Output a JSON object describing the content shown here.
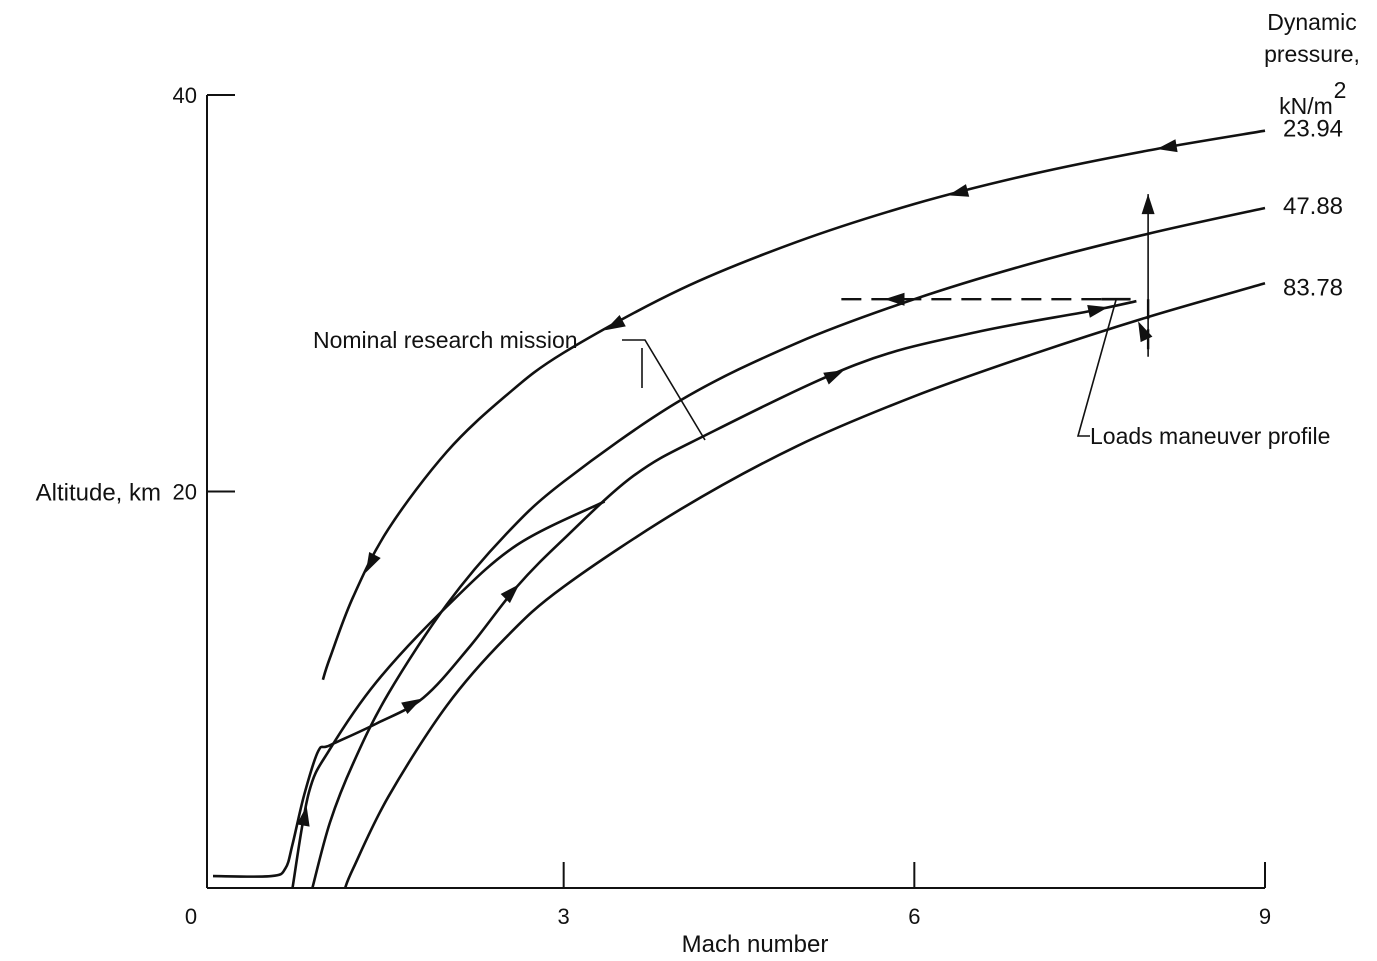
{
  "chart_data": {
    "type": "line",
    "xlabel": "Mach number",
    "ylabel": "Altitude, km",
    "xlim": [
      0,
      9
    ],
    "ylim": [
      0,
      40
    ],
    "x_ticks": [
      "0",
      "3",
      "6",
      "9"
    ],
    "y_ticks": [
      "20",
      "40"
    ],
    "legend_title_lines": [
      "Dynamic",
      "pressure,",
      "kN/m"
    ],
    "legend_title_superscript": "2",
    "series": [
      {
        "name": "23.94",
        "x": [
          0.94,
          1.0,
          1.2,
          1.5,
          2.0,
          2.5,
          3.0,
          4.0,
          5.0,
          6.0,
          7.0,
          8.0,
          9.0
        ],
        "y": [
          10.5,
          11.6,
          14.7,
          18.1,
          22.0,
          24.8,
          27.0,
          30.2,
          32.6,
          34.5,
          36.0,
          37.2,
          38.2
        ]
      },
      {
        "name": "47.88",
        "x": [
          0.85,
          1.0,
          1.2,
          1.5,
          2.0,
          2.5,
          3.0,
          4.0,
          5.0,
          6.0,
          7.0,
          8.0,
          9.0
        ],
        "y": [
          0.0,
          3.3,
          6.3,
          9.8,
          14.3,
          17.8,
          20.5,
          24.6,
          27.5,
          29.7,
          31.5,
          33.0,
          34.3
        ]
      },
      {
        "name": "83.78",
        "x": [
          1.13,
          1.2,
          1.5,
          2.0,
          2.5,
          3.0,
          4.0,
          5.0,
          6.0,
          7.0,
          8.0,
          9.0
        ],
        "y": [
          0.0,
          1.0,
          4.6,
          9.2,
          12.6,
          15.2,
          19.1,
          22.3,
          24.8,
          26.9,
          28.8,
          30.5
        ]
      }
    ],
    "research_mission_path": {
      "x": [
        0.0,
        0.5,
        0.62,
        0.68,
        0.78,
        0.9,
        1.0,
        1.4,
        1.8,
        2.2,
        2.6,
        3.0,
        3.6,
        4.2,
        5.5,
        6.5,
        7.5,
        7.9
      ],
      "y": [
        0.6,
        0.6,
        1.0,
        2.2,
        4.7,
        6.9,
        7.2,
        8.3,
        9.6,
        12.2,
        15.2,
        17.6,
        20.8,
        22.8,
        26.4,
        28.0,
        29.1,
        29.6
      ]
    },
    "secondary_track": {
      "x": [
        0.68,
        0.82,
        1.0,
        1.4,
        2.0,
        2.6,
        3.35
      ],
      "y": [
        0.0,
        4.8,
        7.0,
        10.4,
        14.2,
        17.3,
        19.5
      ]
    },
    "loads_maneuver": {
      "x_start": 7.6,
      "x_end": 5.3,
      "altitude": 29.7,
      "x_drop": 7.9,
      "bottom_altitude": 26.8,
      "top_altitude": 35.0
    },
    "annotations": [
      "Nominal research mission",
      "Loads maneuver profile"
    ],
    "grid": false
  }
}
